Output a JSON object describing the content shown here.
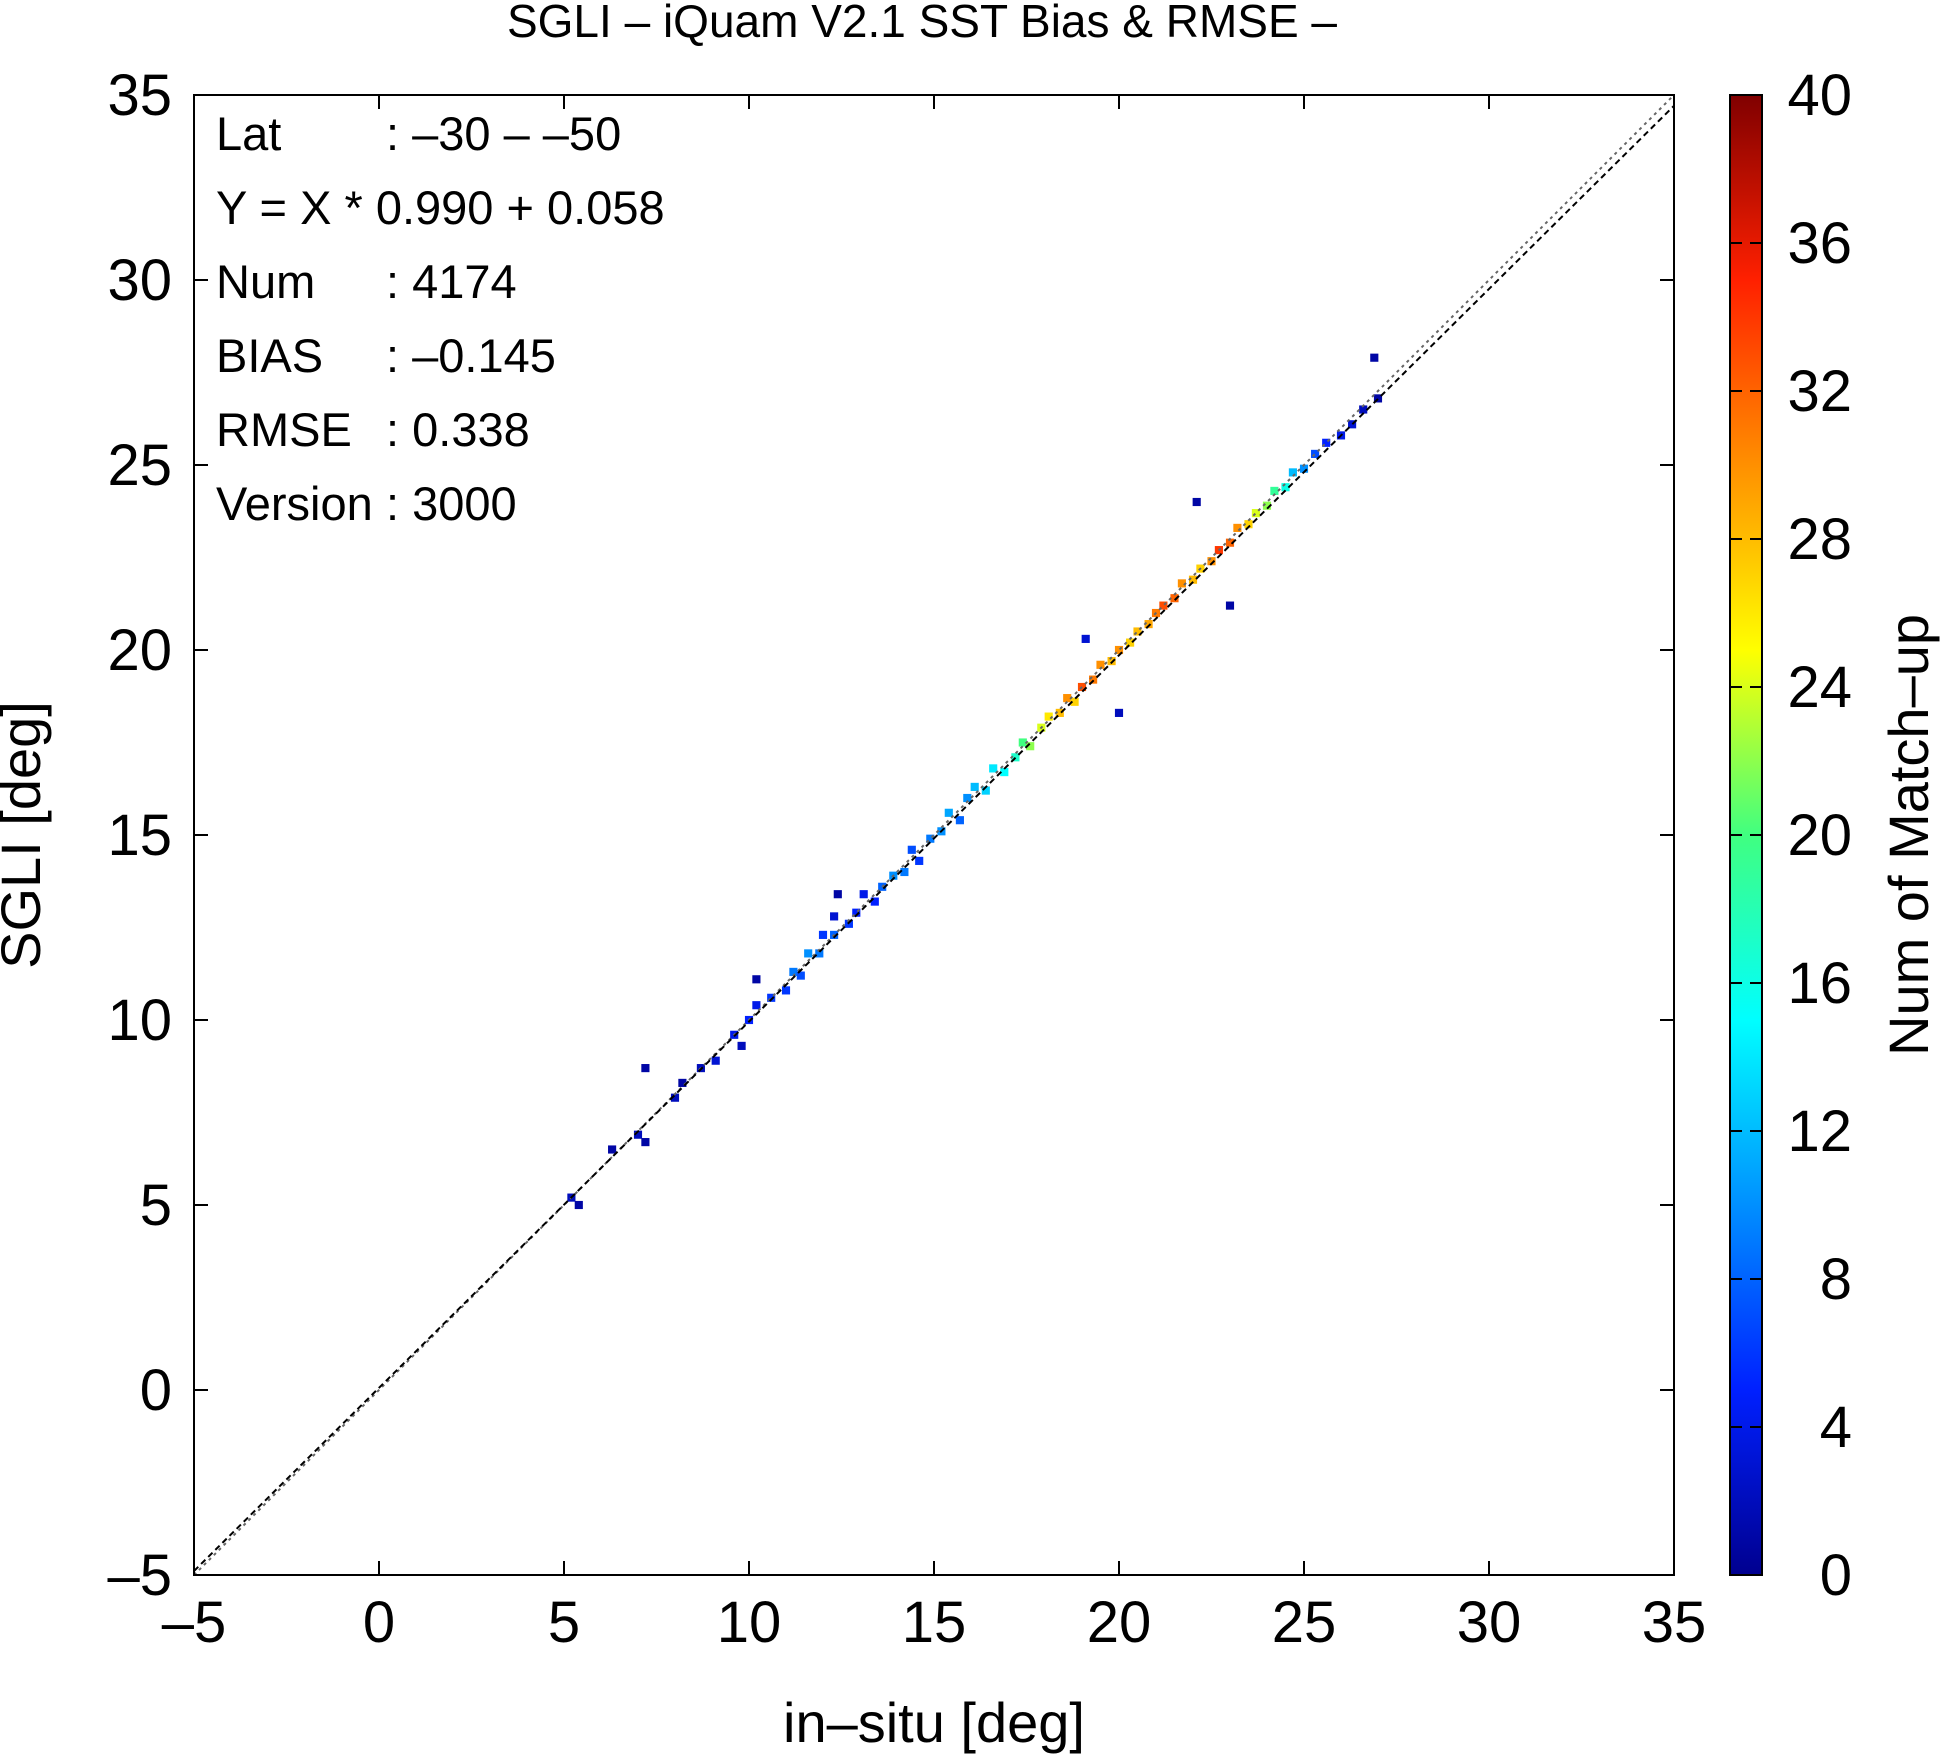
{
  "chart_data": {
    "type": "heatmap",
    "title": "SGLI – iQuam V2.1 SST Bias & RMSE  –",
    "xlabel": "in–situ [deg]",
    "ylabel": "SGLI [deg]",
    "xlim": [
      -5,
      35
    ],
    "ylim": [
      -5,
      35
    ],
    "xticks": [
      -5,
      0,
      5,
      10,
      15,
      20,
      25,
      30,
      35
    ],
    "yticks": [
      -5,
      0,
      5,
      10,
      15,
      20,
      25,
      30,
      35
    ],
    "xtick_labels": [
      "–5",
      "0",
      "5",
      "10",
      "15",
      "20",
      "25",
      "30",
      "35"
    ],
    "ytick_labels": [
      "–5",
      "0",
      "5",
      "10",
      "15",
      "20",
      "25",
      "30",
      "35"
    ],
    "grid": false,
    "stats": [
      {
        "label": "Lat",
        "value": ": –30 – –50"
      },
      {
        "label": "Y = X * 0.990 + 0.058",
        "value": ""
      },
      {
        "label": "Num",
        "value": ": 4174"
      },
      {
        "label": "BIAS",
        "value": ": –0.145"
      },
      {
        "label": "RMSE",
        "value": ": 0.338"
      },
      {
        "label": "Version",
        "value": ": 3000"
      }
    ],
    "lines": [
      {
        "name": "1:1",
        "style": "dotted",
        "slope": 1.0,
        "intercept": 0.0
      },
      {
        "name": "regression",
        "style": "dashed",
        "slope": 0.99,
        "intercept": 0.058
      }
    ],
    "colorbar": {
      "label": "Num of Match–up",
      "range": [
        0,
        40
      ],
      "ticks": [
        0,
        4,
        8,
        12,
        16,
        20,
        24,
        28,
        32,
        36,
        40
      ],
      "colormap": "jet"
    },
    "density_cells": [
      [
        5.2,
        5.2,
        2
      ],
      [
        5.4,
        5.0,
        1
      ],
      [
        6.3,
        6.5,
        1
      ],
      [
        7.0,
        6.9,
        2
      ],
      [
        7.2,
        8.7,
        1
      ],
      [
        7.2,
        6.7,
        1
      ],
      [
        8.0,
        7.9,
        2
      ],
      [
        8.2,
        8.3,
        1
      ],
      [
        8.7,
        8.7,
        2
      ],
      [
        9.1,
        8.9,
        3
      ],
      [
        9.6,
        9.6,
        4
      ],
      [
        9.8,
        9.3,
        2
      ],
      [
        10.0,
        10.0,
        5
      ],
      [
        10.2,
        10.4,
        4
      ],
      [
        10.2,
        11.1,
        1
      ],
      [
        10.6,
        10.6,
        6
      ],
      [
        11.0,
        10.8,
        6
      ],
      [
        11.2,
        11.3,
        9
      ],
      [
        11.4,
        11.2,
        7
      ],
      [
        11.6,
        11.8,
        10
      ],
      [
        11.9,
        11.8,
        9
      ],
      [
        12.0,
        12.3,
        6
      ],
      [
        12.3,
        12.3,
        8
      ],
      [
        12.3,
        12.8,
        3
      ],
      [
        12.4,
        13.4,
        1
      ],
      [
        12.7,
        12.6,
        6
      ],
      [
        12.9,
        12.9,
        5
      ],
      [
        13.1,
        13.4,
        4
      ],
      [
        13.4,
        13.2,
        5
      ],
      [
        13.6,
        13.6,
        8
      ],
      [
        13.9,
        13.9,
        10
      ],
      [
        14.2,
        14.0,
        9
      ],
      [
        14.4,
        14.6,
        7
      ],
      [
        14.6,
        14.3,
        6
      ],
      [
        14.9,
        14.9,
        9
      ],
      [
        15.2,
        15.1,
        10
      ],
      [
        15.4,
        15.6,
        11
      ],
      [
        15.7,
        15.4,
        8
      ],
      [
        15.9,
        16.0,
        10
      ],
      [
        16.1,
        16.3,
        12
      ],
      [
        16.4,
        16.2,
        13
      ],
      [
        16.6,
        16.8,
        14
      ],
      [
        16.9,
        16.7,
        15
      ],
      [
        17.2,
        17.1,
        17
      ],
      [
        17.4,
        17.5,
        20
      ],
      [
        17.6,
        17.4,
        22
      ],
      [
        17.9,
        17.9,
        24
      ],
      [
        18.1,
        18.2,
        26
      ],
      [
        18.4,
        18.3,
        28
      ],
      [
        18.6,
        18.7,
        30
      ],
      [
        18.8,
        18.6,
        27
      ],
      [
        19.0,
        19.0,
        33
      ],
      [
        19.1,
        20.3,
        3
      ],
      [
        19.3,
        19.2,
        31
      ],
      [
        19.5,
        19.6,
        30
      ],
      [
        19.8,
        19.7,
        28
      ],
      [
        20.0,
        20.0,
        30
      ],
      [
        20.0,
        18.3,
        2
      ],
      [
        20.3,
        20.2,
        27
      ],
      [
        20.5,
        20.5,
        28
      ],
      [
        20.8,
        20.7,
        29
      ],
      [
        21.0,
        21.0,
        31
      ],
      [
        21.2,
        21.2,
        33
      ],
      [
        21.5,
        21.4,
        32
      ],
      [
        21.7,
        21.8,
        30
      ],
      [
        22.0,
        21.9,
        28
      ],
      [
        22.2,
        22.2,
        27
      ],
      [
        22.5,
        22.4,
        30
      ],
      [
        22.7,
        22.7,
        34
      ],
      [
        23.0,
        22.9,
        32
      ],
      [
        23.2,
        23.3,
        30
      ],
      [
        23.5,
        23.4,
        27
      ],
      [
        23.7,
        23.7,
        24
      ],
      [
        24.0,
        23.9,
        22
      ],
      [
        24.2,
        24.3,
        19
      ],
      [
        24.5,
        24.4,
        16
      ],
      [
        24.7,
        24.8,
        12
      ],
      [
        25.0,
        24.9,
        10
      ],
      [
        25.3,
        25.3,
        7
      ],
      [
        25.6,
        25.6,
        5
      ],
      [
        26.0,
        25.8,
        4
      ],
      [
        26.3,
        26.1,
        3
      ],
      [
        26.6,
        26.5,
        2
      ],
      [
        26.9,
        27.9,
        1
      ],
      [
        27.0,
        26.8,
        1
      ],
      [
        22.1,
        24.0,
        1
      ],
      [
        23.0,
        21.2,
        1
      ]
    ]
  }
}
